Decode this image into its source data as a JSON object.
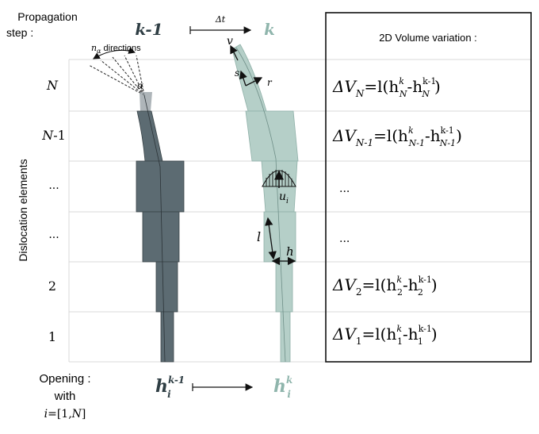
{
  "header": {
    "step_label_line1": "Propagation",
    "step_label_line2": "step :",
    "prev_step": "k-1",
    "delta_t": "Δt",
    "next_step": "k"
  },
  "angular": {
    "directions_symbol": "n",
    "directions_subscript": "α",
    "directions_text": " directions",
    "alpha": "α"
  },
  "rows": [
    {
      "label": "N",
      "label_sub": ""
    },
    {
      "label": "N",
      "label_sub": "-1"
    },
    {
      "label": "...",
      "label_sub": ""
    },
    {
      "label": "...",
      "label_sub": ""
    },
    {
      "label": "2",
      "label_sub": ""
    },
    {
      "label": "1",
      "label_sub": ""
    }
  ],
  "y_axis_label": "Dislocation elements",
  "frame_labels": {
    "v": "v",
    "s": "s",
    "r": "r",
    "u": "u",
    "u_sub": "i",
    "l": "l",
    "h": "h"
  },
  "volume_panel": {
    "title": "2D Volume variation :",
    "eqs": [
      {
        "dv": "ΔV",
        "sub": "N",
        "eq": "=l(h",
        "h1_sup": "k",
        "h1_sub": "N",
        "mid": "-h",
        "h2_sup": "k-1",
        "h2_sub": "N",
        "end": ")"
      },
      {
        "dv": "ΔV",
        "sub": "N-1",
        "eq": "=l(h",
        "h1_sup": "k",
        "h1_sub": "N-1",
        "mid": "-h",
        "h2_sup": "k-1",
        "h2_sub": "N-1",
        "end": ")"
      },
      {
        "dv": "...",
        "sub": "",
        "eq": "",
        "h1_sup": "",
        "h1_sub": "",
        "mid": "",
        "h2_sup": "",
        "h2_sub": "",
        "end": ""
      },
      {
        "dv": "...",
        "sub": "",
        "eq": "",
        "h1_sup": "",
        "h1_sub": "",
        "mid": "",
        "h2_sup": "",
        "h2_sub": "",
        "end": ""
      },
      {
        "dv": "ΔV",
        "sub": "2",
        "eq": "=l(h",
        "h1_sup": "k",
        "h1_sub": "2",
        "mid": "-h",
        "h2_sup": "k-1",
        "h2_sub": "2",
        "end": ")"
      },
      {
        "dv": "ΔV",
        "sub": "1",
        "eq": "=l(h",
        "h1_sup": "k",
        "h1_sub": "1",
        "mid": "-h",
        "h2_sup": "k-1",
        "h2_sub": "1",
        "end": ")"
      }
    ]
  },
  "footer": {
    "opening_line1": "Opening :",
    "opening_line2": "with",
    "range_prefix": "i",
    "range_eq": "=[1,",
    "range_N": "N",
    "range_end": "]",
    "h_prev": "h",
    "h_prev_sup": "k-1",
    "h_prev_sub": "i",
    "h_next": "h",
    "h_next_sup": "k",
    "h_next_sub": "i"
  },
  "colors": {
    "prev_shape": "#5c6b72",
    "prev_edge": "#3a4448",
    "next_shape": "#b5cfc8",
    "next_edge": "#8fb0a8",
    "prev_text": "#2f3e44",
    "next_text": "#8fb5ac",
    "grid": "#d8d8d8"
  }
}
